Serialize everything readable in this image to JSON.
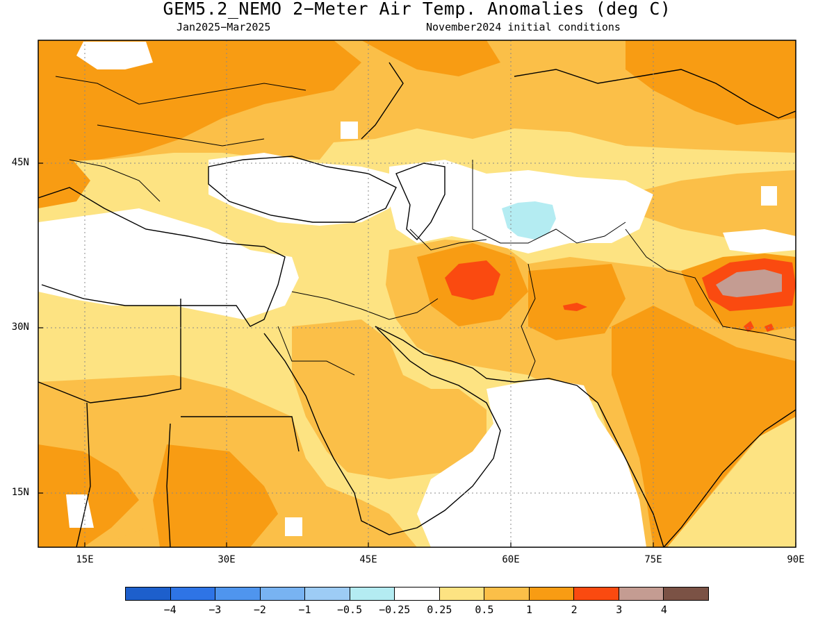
{
  "title": "GEM5.2_NEMO 2−Meter Air Temp. Anomalies (deg C)",
  "subtitle_period": "Jan2025−Mar2025",
  "subtitle_init": "November2024 initial conditions",
  "lat_labels": [
    "45N",
    "30N",
    "15N"
  ],
  "lon_labels": [
    "15E",
    "30E",
    "45E",
    "60E",
    "75E",
    "90E"
  ],
  "legend": {
    "colors": [
      "#1d5fcc",
      "#2e74e6",
      "#4f95ee",
      "#78b3f2",
      "#9dccf5",
      "#b4ecf2",
      "#ffffff",
      "#fde382",
      "#fbbf48",
      "#f89c13",
      "#fa4a10",
      "#c49c92",
      "#7b5245"
    ],
    "labels": [
      "−4",
      "−3",
      "−2",
      "−1",
      "−0.5",
      "−0.25",
      "0.25",
      "0.5",
      "1",
      "2",
      "3",
      "4"
    ]
  },
  "colors": {
    "light_orange": "#fde382",
    "orange": "#fbbf48",
    "dark_orange": "#f89c13",
    "red": "#fa4a10",
    "mauve": "#c49c92",
    "light_blue": "#b4ecf2"
  }
}
